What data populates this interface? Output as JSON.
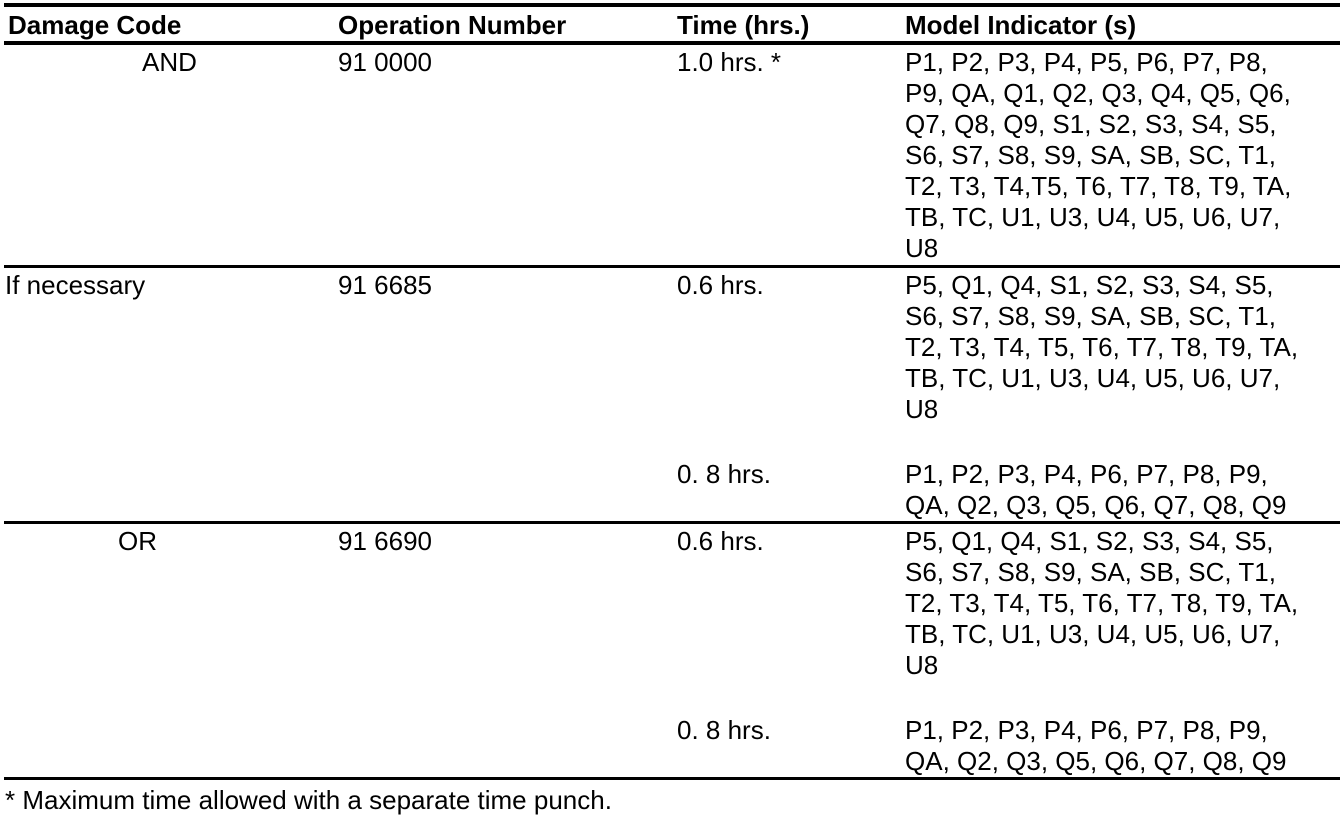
{
  "table": {
    "columns": [
      {
        "label": "Damage Code"
      },
      {
        "label": "Operation Number"
      },
      {
        "label": "Time (hrs.)"
      },
      {
        "label": "Model Indicator (s)"
      }
    ],
    "sections": [
      {
        "damage_code": "AND",
        "operation_number": "91 0000",
        "entries": [
          {
            "time": "1.0 hrs. *",
            "models": "P1, P2, P3, P4, P5, P6, P7, P8,\nP9, QA, Q1, Q2, Q3, Q4, Q5, Q6,\nQ7, Q8, Q9, S1, S2, S3, S4, S5,\nS6, S7, S8, S9, SA, SB, SC, T1,\nT2, T3, T4,T5, T6, T7, T8, T9, TA,\nTB, TC, U1, U3, U4, U5, U6, U7,\nU8"
          }
        ]
      },
      {
        "damage_code": "If necessary",
        "operation_number": "91 6685",
        "entries": [
          {
            "time": "0.6 hrs.",
            "models": "P5, Q1, Q4, S1, S2, S3, S4, S5,\nS6, S7, S8, S9, SA, SB, SC, T1,\nT2, T3, T4, T5, T6, T7, T8, T9, TA,\nTB, TC, U1, U3, U4, U5, U6, U7,\nU8"
          },
          {
            "time": "0. 8 hrs.",
            "models": "P1, P2, P3, P4, P6, P7, P8, P9,\nQA, Q2, Q3, Q5, Q6, Q7, Q8, Q9"
          }
        ]
      },
      {
        "damage_code": "OR",
        "operation_number": "91 6690",
        "entries": [
          {
            "time": "0.6 hrs.",
            "models": "P5, Q1, Q4, S1, S2, S3, S4, S5,\nS6, S7, S8, S9, SA, SB, SC, T1,\nT2, T3, T4, T5, T6, T7, T8, T9, TA,\nTB, TC, U1, U3, U4, U5, U6, U7,\nU8"
          },
          {
            "time": "0. 8 hrs.",
            "models": "P1, P2, P3, P4, P6, P7, P8, P9,\nQA, Q2, Q3, Q5, Q6, Q7, Q8, Q9"
          }
        ]
      }
    ],
    "footnote": "* Maximum time allowed with a separate time punch."
  }
}
